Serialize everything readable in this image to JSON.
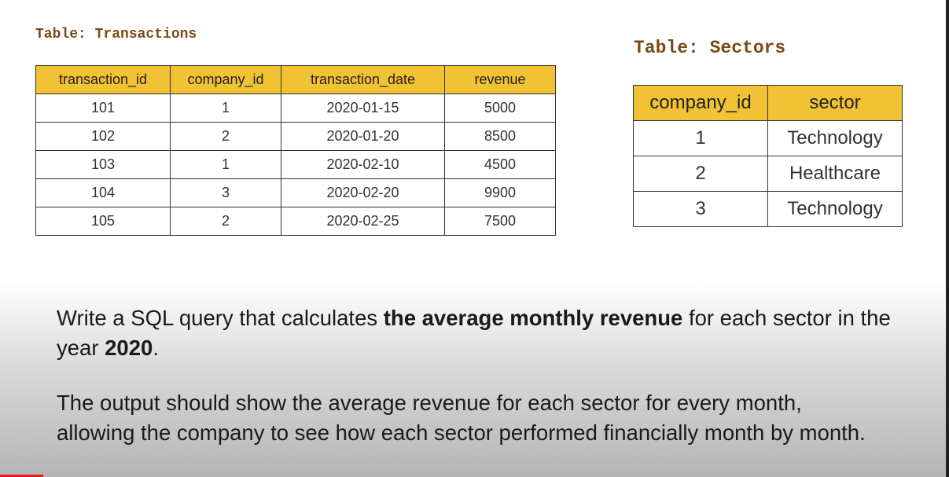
{
  "transactions": {
    "title": "Table: Transactions",
    "headers": [
      "transaction_id",
      "company_id",
      "transaction_date",
      "revenue"
    ],
    "rows": [
      [
        "101",
        "1",
        "2020-01-15",
        "5000"
      ],
      [
        "102",
        "2",
        "2020-01-20",
        "8500"
      ],
      [
        "103",
        "1",
        "2020-02-10",
        "4500"
      ],
      [
        "104",
        "3",
        "2020-02-20",
        "9900"
      ],
      [
        "105",
        "2",
        "2020-02-25",
        "7500"
      ]
    ]
  },
  "sectors": {
    "title": "Table: Sectors",
    "headers": [
      "company_id",
      "sector"
    ],
    "rows": [
      [
        "1",
        "Technology"
      ],
      [
        "2",
        "Healthcare"
      ],
      [
        "3",
        "Technology"
      ]
    ]
  },
  "paragraphs": [
    {
      "lines": [
        [
          {
            "text": "Write a SQL query that calculates "
          },
          {
            "text": "the average monthly revenue",
            "bold": true
          },
          {
            "text": " for each sector in the"
          }
        ],
        [
          {
            "text": "year "
          },
          {
            "text": "2020",
            "bold": true
          },
          {
            "text": "."
          }
        ]
      ]
    },
    {
      "lines": [
        [
          {
            "text": "The output should show the average revenue for each sector for every month,"
          }
        ],
        [
          {
            "text": "allowing the company to see how each sector performed financially month by month."
          }
        ]
      ]
    }
  ]
}
